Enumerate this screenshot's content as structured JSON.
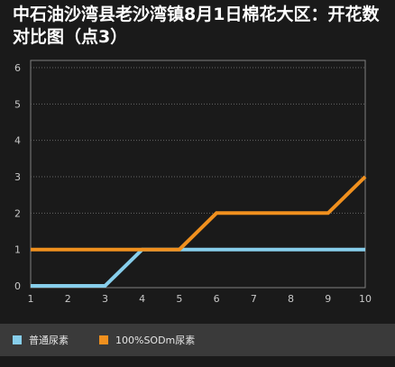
{
  "chart_data": {
    "type": "line",
    "title": "中石油沙湾县老沙湾镇8月1日棉花大区：开花数对比图（点3）",
    "xlabel": "",
    "ylabel": "",
    "x": [
      1,
      2,
      3,
      4,
      5,
      6,
      7,
      8,
      9,
      10
    ],
    "x_tick_labels": [
      "1",
      "2",
      "3",
      "4",
      "5",
      "6",
      "7",
      "8",
      "9",
      "10"
    ],
    "y_tick_labels": [
      "0",
      "1",
      "2",
      "3",
      "4",
      "5",
      "6"
    ],
    "xlim": [
      1,
      10
    ],
    "ylim": [
      0,
      6
    ],
    "grid": true,
    "legend_position": "bottom",
    "series": [
      {
        "name": "普通尿素",
        "values": [
          0,
          0,
          0,
          1,
          1,
          1,
          1,
          1,
          1,
          1
        ],
        "color": "#87ceeb"
      },
      {
        "name": "100%SODm尿素",
        "values": [
          1,
          1,
          1,
          1,
          1,
          2,
          2,
          2,
          2,
          3
        ],
        "color": "#f0901e"
      }
    ]
  }
}
